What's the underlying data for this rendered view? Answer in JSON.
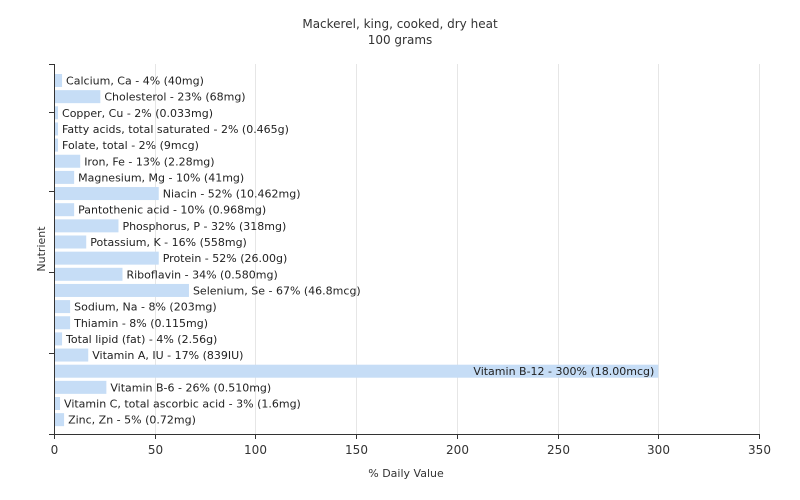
{
  "chart_data": {
    "type": "bar",
    "orientation": "horizontal",
    "title": "Mackerel, king, cooked, dry heat",
    "subtitle": "100 grams",
    "xlabel": "% Daily Value",
    "ylabel": "Nutrient",
    "xlim": [
      0,
      350
    ],
    "xticks": [
      0,
      50,
      100,
      150,
      200,
      250,
      300,
      350
    ],
    "grid": true,
    "bar_color": "#c6ddf6",
    "categories": [
      "Calcium, Ca",
      "Cholesterol",
      "Copper, Cu",
      "Fatty acids, total saturated",
      "Folate, total",
      "Iron, Fe",
      "Magnesium, Mg",
      "Niacin",
      "Pantothenic acid",
      "Phosphorus, P",
      "Potassium, K",
      "Protein",
      "Riboflavin",
      "Selenium, Se",
      "Sodium, Na",
      "Thiamin",
      "Total lipid (fat)",
      "Vitamin A, IU",
      "Vitamin B-12",
      "Vitamin B-6",
      "Vitamin C, total ascorbic acid",
      "Zinc, Zn"
    ],
    "values": [
      4,
      23,
      2,
      2,
      2,
      13,
      10,
      52,
      10,
      32,
      16,
      52,
      34,
      67,
      8,
      8,
      4,
      17,
      300,
      26,
      3,
      5
    ],
    "labels": [
      "Calcium, Ca - 4% (40mg)",
      "Cholesterol - 23% (68mg)",
      "Copper, Cu - 2% (0.033mg)",
      "Fatty acids, total saturated - 2% (0.465g)",
      "Folate, total - 2% (9mcg)",
      "Iron, Fe - 13% (2.28mg)",
      "Magnesium, Mg - 10% (41mg)",
      "Niacin - 52% (10.462mg)",
      "Pantothenic acid - 10% (0.968mg)",
      "Phosphorus, P - 32% (318mg)",
      "Potassium, K - 16% (558mg)",
      "Protein - 52% (26.00g)",
      "Riboflavin - 34% (0.580mg)",
      "Selenium, Se - 67% (46.8mcg)",
      "Sodium, Na - 8% (203mg)",
      "Thiamin - 8% (0.115mg)",
      "Total lipid (fat) - 4% (2.56g)",
      "Vitamin A, IU - 17% (839IU)",
      "Vitamin B-12 - 300% (18.00mcg)",
      "Vitamin B-6 - 26% (0.510mg)",
      "Vitamin C, total ascorbic acid - 3% (1.6mg)",
      "Zinc, Zn - 5% (0.72mg)"
    ]
  }
}
